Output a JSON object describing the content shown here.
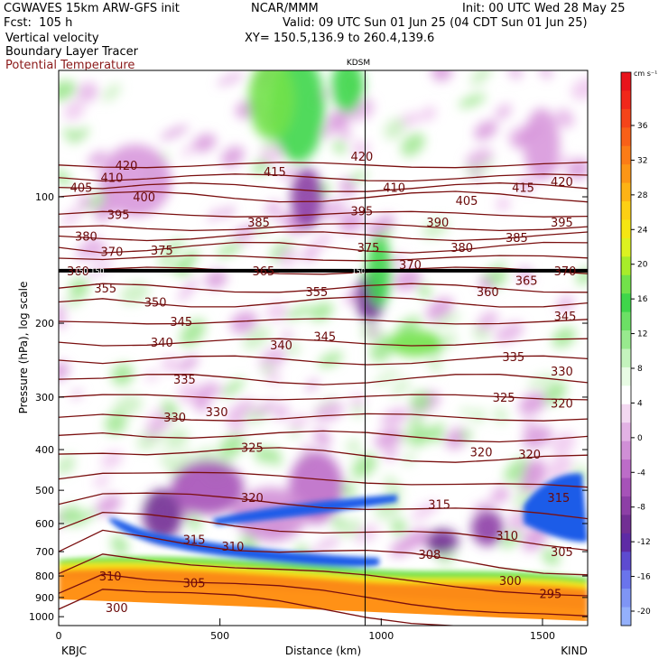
{
  "header": {
    "left_lines": [
      "CGWAVES 15km ARW-GFS init",
      "Fcst:  105 h",
      "Vertical velocity",
      "Boundary Layer Tracer",
      "Potential Temperature"
    ],
    "center_lines": [
      "NCAR/MMM",
      "Valid: 09 UTC Sun 01 Jun 25 (04 CDT Sun 01 Jun 25)",
      "XY= 150.5,136.9 to 260.4,139.6"
    ],
    "init": "Init: 00 UTC Wed 28 May 25",
    "potential_temp_color": "#8b1a1a"
  },
  "chart_data": {
    "type": "heatmap",
    "title": "KDSM",
    "xlabel": "Distance (km)",
    "ylabel": "Pressure (hPa), log scale",
    "x_ticks": [
      0,
      500,
      1000,
      1500
    ],
    "x_range": [
      0,
      1640
    ],
    "y_ticks": [
      100,
      200,
      300,
      400,
      500,
      600,
      700,
      800,
      900,
      1000
    ],
    "y_range": [
      1050,
      50
    ],
    "y_scale": "log",
    "left_endpoint": "KBJC",
    "right_endpoint": "KIND",
    "marker_x_km": 950,
    "colorbar": {
      "units": "cm s⁻¹",
      "ticks": [
        36,
        32,
        28,
        24,
        20,
        16,
        12,
        8,
        4,
        0,
        -4,
        -8,
        -12,
        -16,
        -20
      ],
      "colors": [
        "#e8141c",
        "#f0281a",
        "#f54419",
        "#f86018",
        "#fb7c17",
        "#fc9616",
        "#fdb315",
        "#fdd014",
        "#f5e612",
        "#dcf220",
        "#a8ec2a",
        "#72e24a",
        "#3fd64a",
        "#6ce065",
        "#98ea8e",
        "#c4f3bd",
        "#e8fbe4",
        "#ffffff",
        "#f3d8f1",
        "#e3b2e4",
        "#d08fd6",
        "#bc6cc8",
        "#a652b8",
        "#8d3fa6",
        "#722f94",
        "#5e2ba5",
        "#5d4bd0",
        "#6a74ec",
        "#7f95f5",
        "#94b0fb"
      ]
    },
    "isentrope_labels": [
      {
        "value": "420",
        "x": 210,
        "p": 84
      },
      {
        "value": "410",
        "x": 165,
        "p": 90
      },
      {
        "value": "405",
        "x": 70,
        "p": 95
      },
      {
        "value": "400",
        "x": 265,
        "p": 100
      },
      {
        "value": "395",
        "x": 185,
        "p": 110
      },
      {
        "value": "380",
        "x": 85,
        "p": 124
      },
      {
        "value": "370",
        "x": 165,
        "p": 135
      },
      {
        "value": "375",
        "x": 320,
        "p": 134
      },
      {
        "value": "360",
        "x": 60,
        "p": 150
      },
      {
        "value": "355",
        "x": 145,
        "p": 165
      },
      {
        "value": "350",
        "x": 300,
        "p": 178
      },
      {
        "value": "345",
        "x": 380,
        "p": 198
      },
      {
        "value": "340",
        "x": 320,
        "p": 222
      },
      {
        "value": "335",
        "x": 390,
        "p": 272
      },
      {
        "value": "330",
        "x": 360,
        "p": 335
      },
      {
        "value": "330",
        "x": 490,
        "p": 325
      },
      {
        "value": "325",
        "x": 600,
        "p": 395
      },
      {
        "value": "320",
        "x": 600,
        "p": 520
      },
      {
        "value": "315",
        "x": 420,
        "p": 655
      },
      {
        "value": "310",
        "x": 540,
        "p": 680
      },
      {
        "value": "310",
        "x": 160,
        "p": 800
      },
      {
        "value": "305",
        "x": 420,
        "p": 830
      },
      {
        "value": "300",
        "x": 180,
        "p": 950
      },
      {
        "value": "415",
        "x": 670,
        "p": 87
      },
      {
        "value": "385",
        "x": 620,
        "p": 115
      },
      {
        "value": "365",
        "x": 635,
        "p": 150
      },
      {
        "value": "355",
        "x": 800,
        "p": 168
      },
      {
        "value": "345",
        "x": 825,
        "p": 215
      },
      {
        "value": "340",
        "x": 690,
        "p": 225
      },
      {
        "value": "420",
        "x": 940,
        "p": 80
      },
      {
        "value": "410",
        "x": 1040,
        "p": 95
      },
      {
        "value": "395",
        "x": 940,
        "p": 108
      },
      {
        "value": "375",
        "x": 960,
        "p": 132
      },
      {
        "value": "370",
        "x": 1090,
        "p": 145
      },
      {
        "value": "390",
        "x": 1175,
        "p": 115
      },
      {
        "value": "405",
        "x": 1265,
        "p": 102
      },
      {
        "value": "380",
        "x": 1250,
        "p": 132
      },
      {
        "value": "360",
        "x": 1330,
        "p": 168
      },
      {
        "value": "365",
        "x": 1450,
        "p": 158
      },
      {
        "value": "385",
        "x": 1420,
        "p": 125
      },
      {
        "value": "415",
        "x": 1440,
        "p": 95
      },
      {
        "value": "420",
        "x": 1560,
        "p": 92
      },
      {
        "value": "395",
        "x": 1560,
        "p": 115
      },
      {
        "value": "370",
        "x": 1570,
        "p": 150
      },
      {
        "value": "345",
        "x": 1570,
        "p": 192
      },
      {
        "value": "335",
        "x": 1410,
        "p": 240
      },
      {
        "value": "330",
        "x": 1560,
        "p": 260
      },
      {
        "value": "325",
        "x": 1380,
        "p": 300
      },
      {
        "value": "320",
        "x": 1560,
        "p": 310
      },
      {
        "value": "320",
        "x": 1310,
        "p": 405
      },
      {
        "value": "320",
        "x": 1460,
        "p": 410
      },
      {
        "value": "315",
        "x": 1550,
        "p": 520
      },
      {
        "value": "315",
        "x": 1180,
        "p": 540
      },
      {
        "value": "310",
        "x": 1390,
        "p": 640
      },
      {
        "value": "308",
        "x": 1150,
        "p": 710
      },
      {
        "value": "305",
        "x": 1560,
        "p": 700
      },
      {
        "value": "300",
        "x": 1400,
        "p": 820
      },
      {
        "value": "295",
        "x": 1525,
        "p": 880
      }
    ],
    "small_labels": [
      {
        "value": "150",
        "x": 70,
        "p": 150
      },
      {
        "value": "150",
        "x": 120,
        "p": 150
      },
      {
        "value": "150",
        "x": 930,
        "p": 150
      }
    ]
  }
}
